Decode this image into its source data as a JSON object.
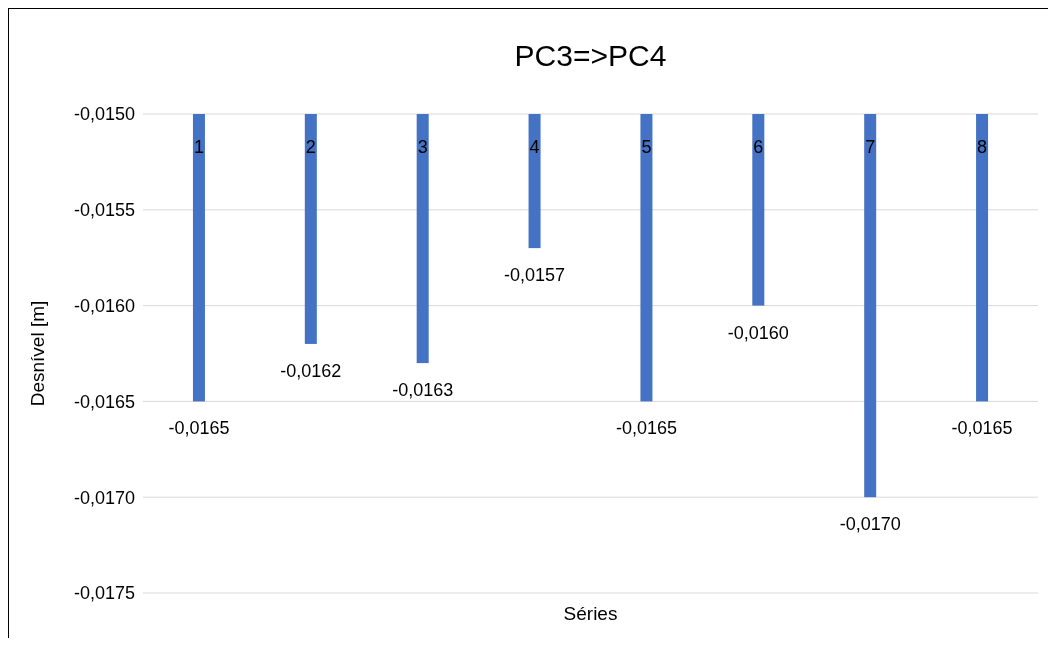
{
  "chart_data": {
    "type": "bar",
    "title": "PC3=>PC4",
    "xlabel": "Séries",
    "ylabel": "Desnível [m]",
    "categories": [
      "1",
      "2",
      "3",
      "4",
      "5",
      "6",
      "7",
      "8"
    ],
    "values": [
      -0.0165,
      -0.0162,
      -0.0163,
      -0.0157,
      -0.0165,
      -0.016,
      -0.017,
      -0.0165
    ],
    "value_labels": [
      "-0,0165",
      "-0,0162",
      "-0,0163",
      "-0,0157",
      "-0,0165",
      "-0,0160",
      "-0,0170",
      "-0,0165"
    ],
    "color": "#4472c4",
    "ylim": [
      -0.0175,
      -0.015
    ],
    "yticks": [
      {
        "value": -0.0175,
        "label": "-0,0175"
      },
      {
        "value": -0.017,
        "label": "-0,0170"
      },
      {
        "value": -0.0165,
        "label": "-0,0165"
      },
      {
        "value": -0.016,
        "label": "-0,0160"
      },
      {
        "value": -0.0155,
        "label": "-0,0155"
      },
      {
        "value": -0.015,
        "label": "-0,0150"
      }
    ],
    "grid": "y"
  }
}
